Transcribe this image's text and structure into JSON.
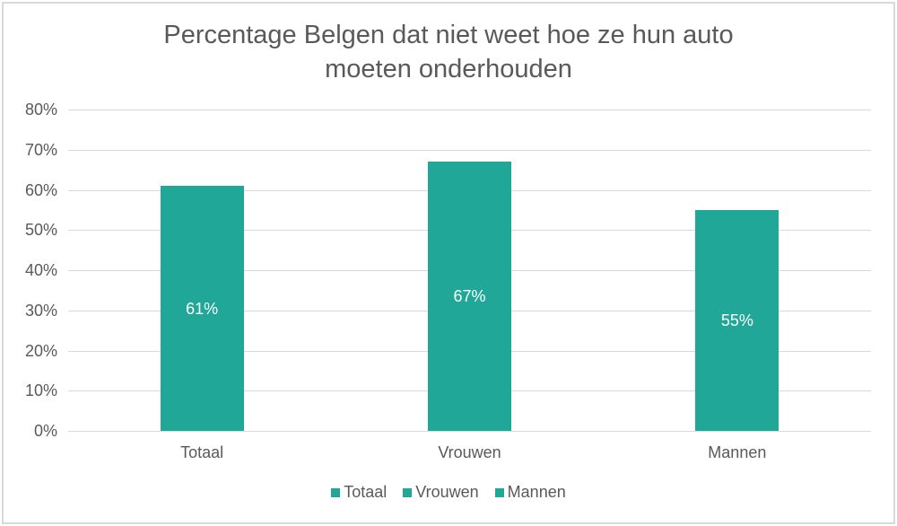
{
  "chart_data": {
    "type": "bar",
    "title": "Percentage Belgen dat niet weet hoe ze hun auto moeten onderhouden",
    "title_lines": [
      "Percentage Belgen dat niet weet hoe ze hun auto",
      "moeten onderhouden"
    ],
    "categories": [
      "Totaal",
      "Vrouwen",
      "Mannen"
    ],
    "values": [
      61,
      67,
      55
    ],
    "data_labels": [
      "61%",
      "67%",
      "55%"
    ],
    "series": [
      {
        "name": "Totaal",
        "values": [
          61,
          null,
          null
        ]
      },
      {
        "name": "Vrouwen",
        "values": [
          null,
          67,
          null
        ]
      },
      {
        "name": "Mannen",
        "values": [
          null,
          null,
          55
        ]
      }
    ],
    "xlabel": "",
    "ylabel": "",
    "ylim": [
      0,
      80
    ],
    "yticks": [
      "0%",
      "10%",
      "20%",
      "30%",
      "40%",
      "50%",
      "60%",
      "70%",
      "80%"
    ],
    "grid": true,
    "legend": [
      "Totaal",
      "Vrouwen",
      "Mannen"
    ],
    "legend_position": "bottom",
    "bar_color": "#21a797"
  }
}
